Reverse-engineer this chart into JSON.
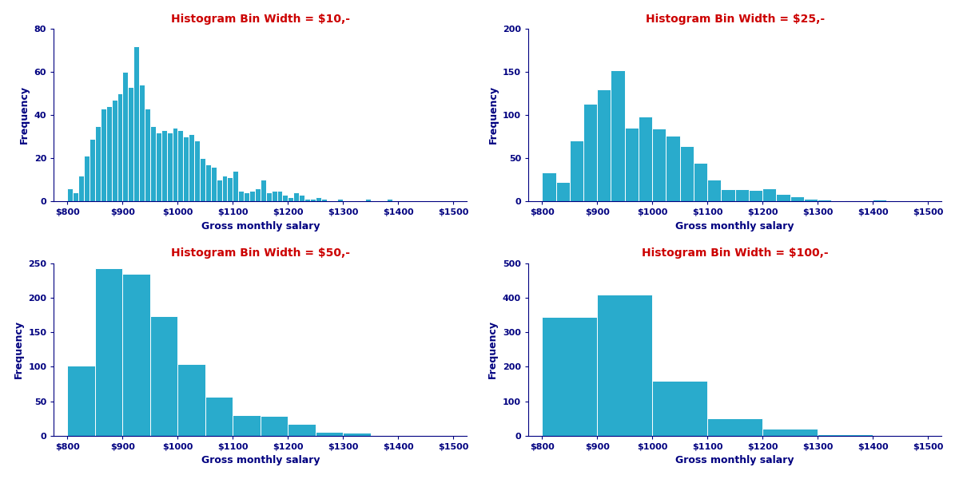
{
  "bar_color": "#29ABCC",
  "edge_color": "white",
  "title_color": "#CC0000",
  "axis_color": "#000080",
  "xlabel": "Gross monthly salary",
  "ylabel": "Frequency",
  "xlim": [
    775,
    1525
  ],
  "xticks": [
    800,
    900,
    1000,
    1100,
    1200,
    1300,
    1400,
    1500
  ],
  "xtick_labels": [
    "$800",
    "$900",
    "$1000",
    "$1100",
    "$1200",
    "$1300",
    "$1400",
    "$1500"
  ],
  "subplots": [
    {
      "title": "Histogram Bin Width = $10,-",
      "bin_width": 10,
      "ylim": [
        0,
        80
      ],
      "yticks": [
        0,
        20,
        40,
        60,
        80
      ],
      "bins_start": 800,
      "bars": [
        6,
        4,
        12,
        21,
        29,
        35,
        43,
        44,
        47,
        50,
        60,
        53,
        72,
        54,
        43,
        35,
        32,
        33,
        32,
        34,
        33,
        30,
        31,
        28,
        20,
        17,
        16,
        10,
        12,
        11,
        14,
        5,
        4,
        5,
        6,
        10,
        4,
        5,
        5,
        3,
        2,
        4,
        3,
        1,
        1,
        2,
        1,
        0,
        0,
        1,
        0,
        0,
        0,
        0,
        1,
        0,
        0,
        0,
        1
      ]
    },
    {
      "title": "Histogram Bin Width = $25,-",
      "bin_width": 25,
      "ylim": [
        0,
        200
      ],
      "yticks": [
        0,
        50,
        100,
        150,
        200
      ],
      "bins_start": 800,
      "bars": [
        33,
        22,
        70,
        113,
        130,
        152,
        85,
        98,
        84,
        76,
        64,
        44,
        25,
        14,
        14,
        13,
        15,
        8,
        6,
        3,
        2,
        0,
        1,
        0,
        2
      ]
    },
    {
      "title": "Histogram Bin Width = $50,-",
      "bin_width": 50,
      "ylim": [
        0,
        250
      ],
      "yticks": [
        0,
        50,
        100,
        150,
        200,
        250
      ],
      "bins_start": 800,
      "bars": [
        102,
        243,
        235,
        173,
        104,
        56,
        30,
        29,
        17,
        5,
        4
      ]
    },
    {
      "title": "Histogram Bin Width = $100,-",
      "bin_width": 100,
      "ylim": [
        0,
        500
      ],
      "yticks": [
        0,
        100,
        200,
        300,
        400,
        500
      ],
      "bins_start": 800,
      "bars": [
        345,
        408,
        160,
        50,
        20,
        5
      ]
    }
  ]
}
